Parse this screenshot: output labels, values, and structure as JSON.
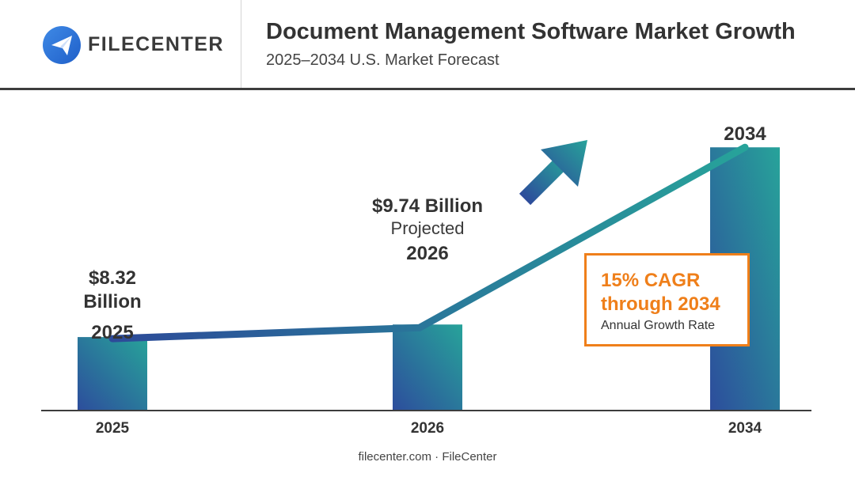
{
  "brand": {
    "name": "FILECENTER",
    "icon": "paper-plane-icon",
    "colors": {
      "dark_blue": "#2b4a9a",
      "teal": "#2aa79b",
      "orange": "#ef7f1a"
    }
  },
  "header": {
    "title": "Document Management Software Market Growth",
    "subtitle": "2025–2034 U.S. Market Forecast"
  },
  "labels": {
    "bar_2025_value": "$8.32 Billion",
    "bar_2025_year": "2025",
    "bar_2026_value": "$9.74 Billion",
    "bar_2026_note": "Projected",
    "bar_2026_year": "2026",
    "bar_2034_year": "2034"
  },
  "callout": {
    "headline": "15% CAGR through 2034",
    "caption": "Annual Growth Rate"
  },
  "footer": "filecenter.com · FileCenter",
  "chart_data": {
    "type": "bar",
    "categories": [
      "2025",
      "2026",
      "2034"
    ],
    "values": [
      8.32,
      9.74,
      29.8
    ],
    "unit": "Billion USD",
    "title": "Document Management Software Market Growth",
    "subtitle": "2025–2034 U.S. Market Forecast",
    "xlabel": "",
    "ylabel": "",
    "ylim": [
      0,
      30
    ],
    "grid": false,
    "legend": "none",
    "annotations": [
      "15% CAGR through 2034",
      "Annual Growth Rate"
    ],
    "trend_line": true
  }
}
